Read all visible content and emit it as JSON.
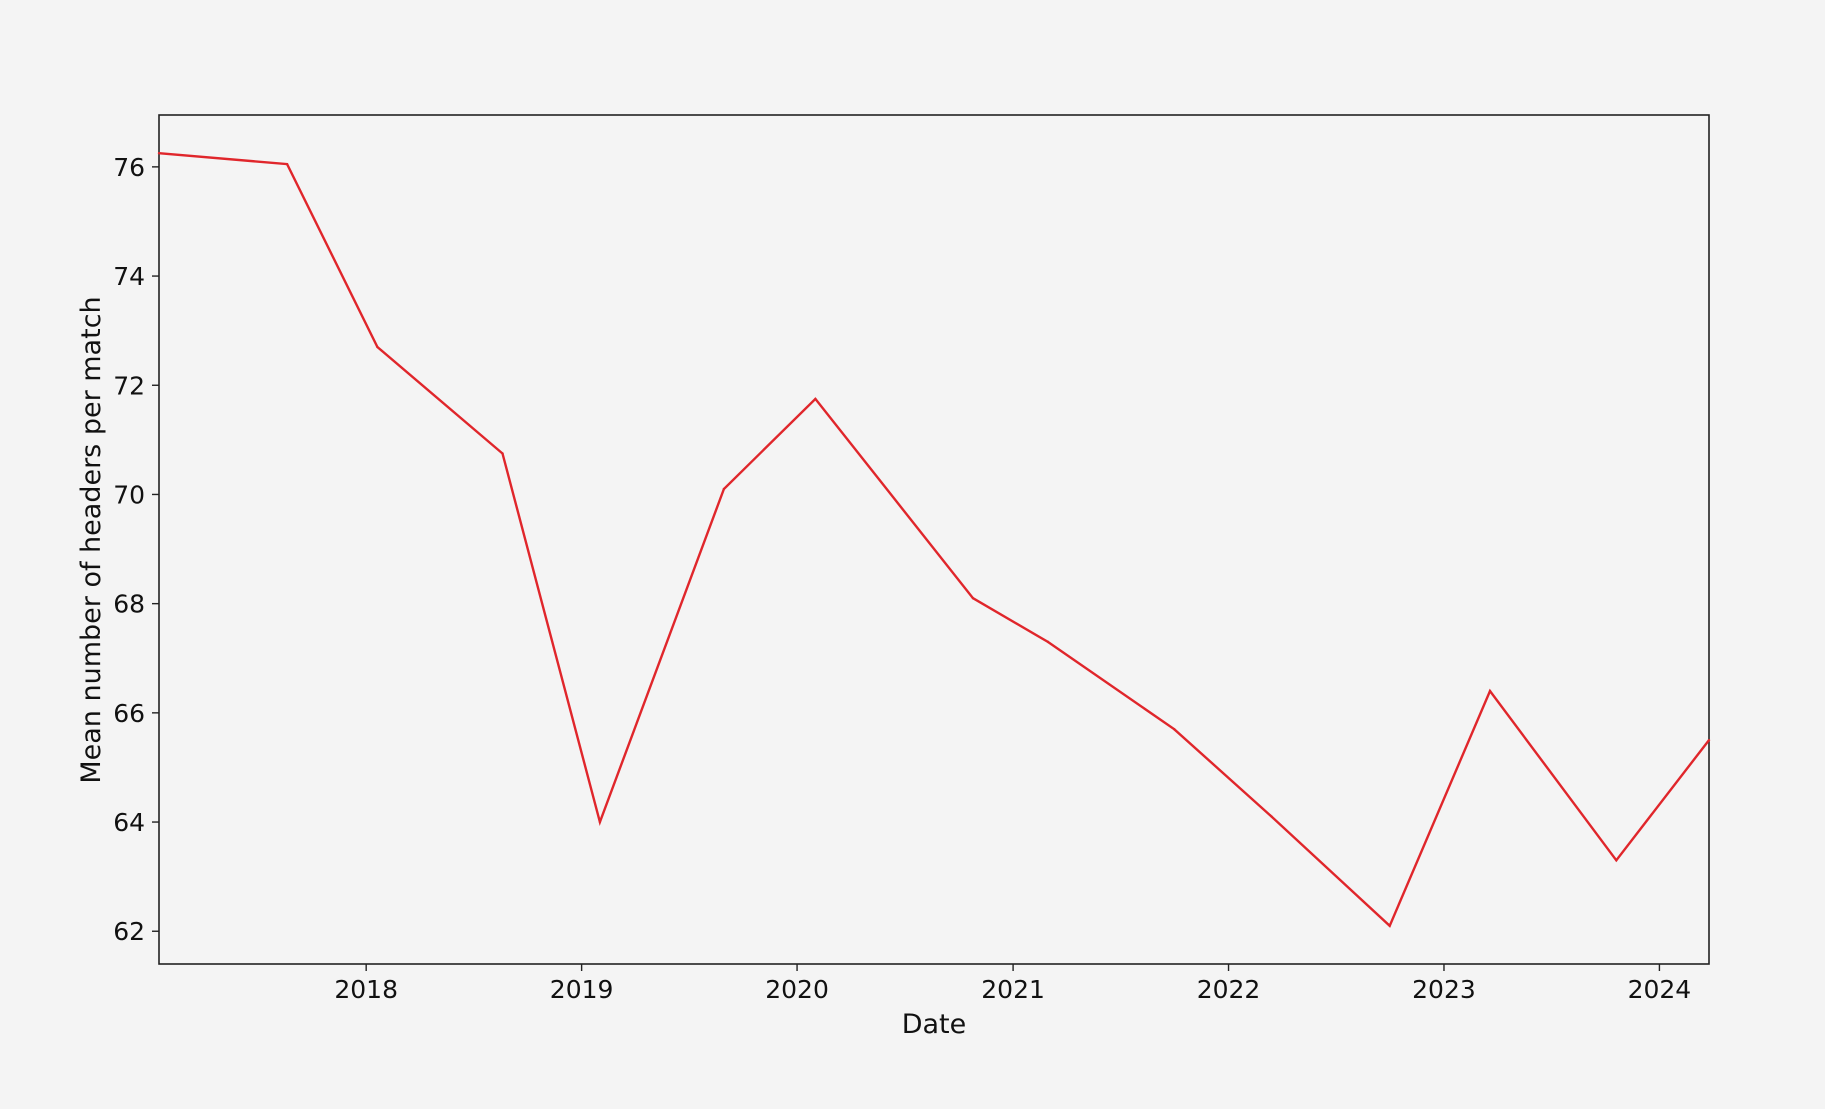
{
  "chart_data": {
    "type": "line",
    "title": "",
    "xlabel": "Date",
    "ylabel": "Mean number of headers per match",
    "x_ticks": [
      "2018",
      "2019",
      "2020",
      "2021",
      "2022",
      "2023",
      "2024"
    ],
    "y_ticks": [
      62,
      64,
      66,
      68,
      70,
      72,
      74,
      76
    ],
    "xlim": [
      "2017-01-15",
      "2024-03-25"
    ],
    "ylim": [
      61.4,
      76.95
    ],
    "grid": false,
    "legend": "none",
    "series": [
      {
        "color": "#e0262b",
        "x": [
          "2017-01-15",
          "2017-08-20",
          "2018-01-20",
          "2018-08-20",
          "2019-02-01",
          "2019-08-30",
          "2020-02-01",
          "2020-10-25",
          "2021-03-01",
          "2021-10-01",
          "2022-03-15",
          "2022-10-01",
          "2023-03-20",
          "2023-10-20",
          "2024-03-25"
        ],
        "y": [
          76.25,
          76.05,
          72.7,
          70.75,
          64.0,
          70.1,
          71.75,
          68.1,
          67.3,
          65.7,
          64.1,
          62.1,
          66.4,
          63.3,
          65.5
        ]
      }
    ]
  }
}
